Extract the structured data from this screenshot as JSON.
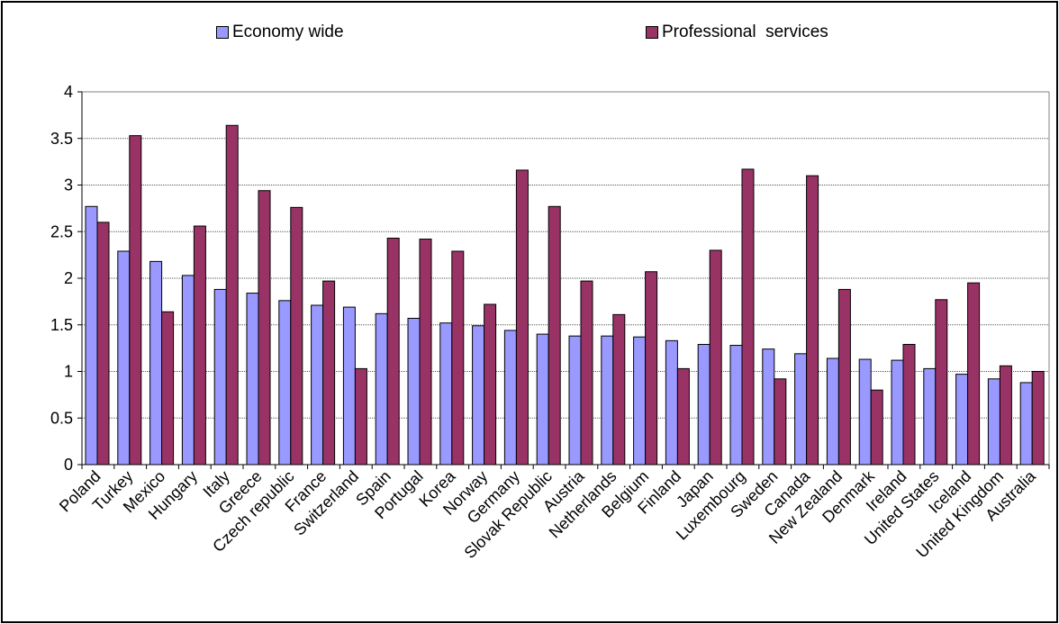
{
  "chart_data": {
    "type": "bar",
    "title": "",
    "xlabel": "",
    "ylabel": "",
    "ylim": [
      0,
      4
    ],
    "yticks": [
      "0",
      "0.5",
      "1",
      "1.5",
      "2",
      "2.5",
      "3",
      "3.5",
      "4"
    ],
    "grid": true,
    "legend_position": "top",
    "categories": [
      "Poland",
      "Turkey",
      "Mexico",
      "Hungary",
      "Italy",
      "Greece",
      "Czech republic",
      "France",
      "Switzerland",
      "Spain",
      "Portugal",
      "Korea",
      "Norway",
      "Germany",
      "Slovak Republic",
      "Austria",
      "Netherlands",
      "Belgium",
      "Finland",
      "Japan",
      "Luxembourg",
      "Sweden",
      "Canada",
      "New Zealand",
      "Denmark",
      "Ireland",
      "United States",
      "Iceland",
      "United Kingdom",
      "Australia"
    ],
    "series": [
      {
        "name": "Economy wide",
        "color": "#9999ff",
        "values": [
          2.77,
          2.29,
          2.18,
          2.03,
          1.88,
          1.84,
          1.76,
          1.71,
          1.69,
          1.62,
          1.57,
          1.52,
          1.49,
          1.44,
          1.4,
          1.38,
          1.38,
          1.37,
          1.33,
          1.29,
          1.28,
          1.24,
          1.19,
          1.14,
          1.13,
          1.12,
          1.03,
          0.97,
          0.92,
          0.88
        ]
      },
      {
        "name": "Professional  services",
        "color": "#993366",
        "values": [
          2.6,
          3.53,
          1.64,
          2.56,
          3.64,
          2.94,
          2.76,
          1.97,
          1.03,
          2.43,
          2.42,
          2.29,
          1.72,
          3.16,
          2.77,
          1.97,
          1.61,
          2.07,
          1.03,
          2.3,
          3.17,
          0.92,
          3.1,
          1.88,
          0.8,
          1.29,
          1.77,
          1.95,
          1.06,
          1.0
        ]
      }
    ]
  }
}
